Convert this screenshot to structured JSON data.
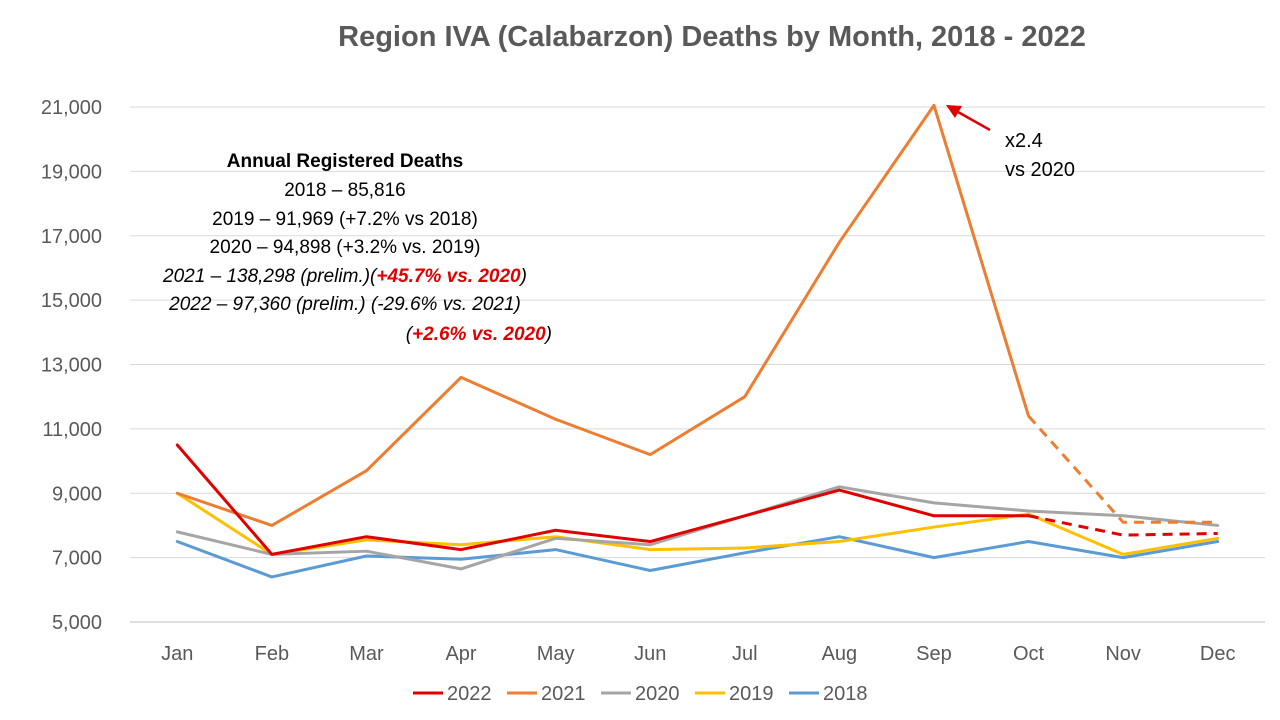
{
  "chart_data": {
    "type": "line",
    "title": "Region IVA (Calabarzon) Deaths by Month, 2018 - 2022",
    "categories": [
      "Jan",
      "Feb",
      "Mar",
      "Apr",
      "May",
      "Jun",
      "Jul",
      "Aug",
      "Sep",
      "Oct",
      "Nov",
      "Dec"
    ],
    "ylim": [
      5000,
      21000
    ],
    "yticks": [
      5000,
      7000,
      9000,
      11000,
      13000,
      15000,
      17000,
      19000,
      21000
    ],
    "ytick_labels": [
      "5,000",
      "7,000",
      "9,000",
      "11,000",
      "13,000",
      "15,000",
      "17,000",
      "19,000",
      "21,000"
    ],
    "grid": true,
    "legend_position": "bottom",
    "series": [
      {
        "name": "2022",
        "color": "#e00000",
        "values": [
          10500,
          7100,
          7650,
          7250,
          7850,
          7500,
          8300,
          9100,
          8300,
          8300,
          7700,
          7750
        ],
        "dashed_from_index": 9
      },
      {
        "name": "2021",
        "color": "#ed7d31",
        "values": [
          9000,
          8000,
          9700,
          12600,
          11300,
          10200,
          12000,
          16800,
          21050,
          11400,
          8100,
          8100
        ],
        "dashed_from_index": 9
      },
      {
        "name": "2020",
        "color": "#a5a5a5",
        "values": [
          7800,
          7100,
          7200,
          6650,
          7600,
          7400,
          8300,
          9200,
          8700,
          8450,
          8300,
          8000
        ],
        "dashed_from_index": null
      },
      {
        "name": "2019",
        "color": "#ffc000",
        "values": [
          9000,
          7100,
          7550,
          7400,
          7650,
          7250,
          7300,
          7500,
          7950,
          8350,
          7100,
          7600
        ],
        "dashed_from_index": null
      },
      {
        "name": "2018",
        "color": "#5b9bd5",
        "values": [
          7500,
          6400,
          7050,
          6950,
          7250,
          6600,
          7150,
          7650,
          7000,
          7500,
          7000,
          7500
        ],
        "dashed_from_index": null
      }
    ],
    "annotations": {
      "heading": "Annual Registered Deaths",
      "line_2018": "2018 – 85,816",
      "line_2019": "2019 – 91,969 (+7.2% vs 2018)",
      "line_2020": "2020 – 94,898 (+3.2% vs. 2019)",
      "line_2021_a": "2021 – 138,298 (prelim.)(",
      "line_2021_b": "+45.7% vs. 2020",
      "line_2021_c": ")",
      "line_2022": "2022 – 97,360 (prelim.) (-29.6% vs. 2021)",
      "line_2022b_a": "(",
      "line_2022b_b": "+2.6% vs. 2020",
      "line_2022b_c": ")",
      "callout_1": "x2.4",
      "callout_2": "vs 2020"
    }
  }
}
